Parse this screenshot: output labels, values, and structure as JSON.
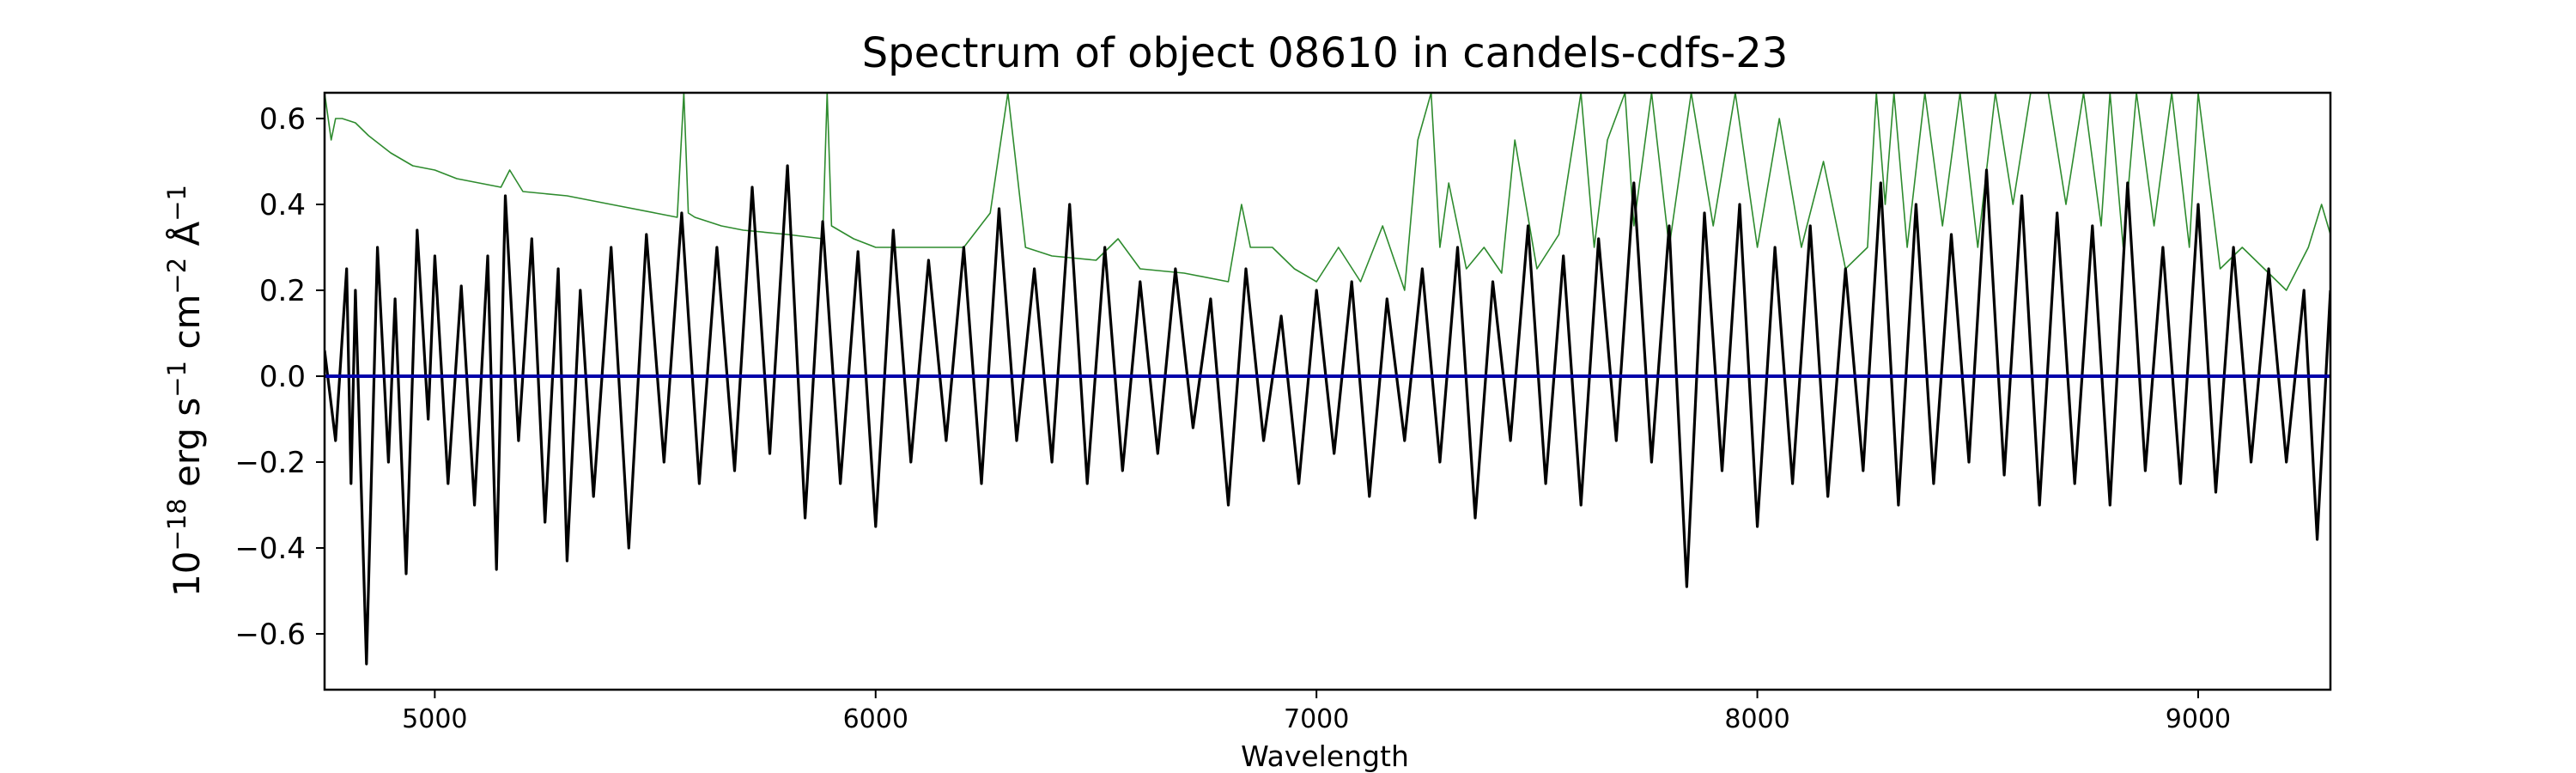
{
  "chart_data": {
    "type": "line",
    "title": "Spectrum of object 08610 in candels-cdfs-23",
    "xlabel": "Wavelength",
    "ylabel": {
      "base": "10",
      "exp1": "−18",
      "erg": " erg s",
      "exp2": "−1",
      "cm": " cm",
      "exp3": "−2",
      "ang": " Å",
      "exp4": "−1"
    },
    "xlim": [
      4750,
      9300
    ],
    "ylim": [
      -0.73,
      0.66
    ],
    "xticks": [
      5000,
      6000,
      7000,
      8000,
      9000
    ],
    "xtick_labels": [
      "5000",
      "6000",
      "7000",
      "8000",
      "9000"
    ],
    "yticks": [
      -0.6,
      -0.4,
      -0.2,
      0.0,
      0.2,
      0.4,
      0.6
    ],
    "ytick_labels": [
      "−0.6",
      "−0.4",
      "−0.2",
      "0.0",
      "0.2",
      "0.4",
      "0.6"
    ],
    "grid": false,
    "series": [
      {
        "role": "flux",
        "color": "#000000",
        "x": [
          4750,
          4775,
          4800,
          4810,
          4820,
          4845,
          4870,
          4895,
          4910,
          4935,
          4960,
          4985,
          5000,
          5030,
          5060,
          5090,
          5120,
          5140,
          5160,
          5190,
          5220,
          5250,
          5280,
          5300,
          5330,
          5360,
          5400,
          5440,
          5480,
          5520,
          5560,
          5600,
          5640,
          5680,
          5720,
          5760,
          5800,
          5840,
          5880,
          5920,
          5960,
          6000,
          6040,
          6080,
          6120,
          6160,
          6200,
          6240,
          6280,
          6320,
          6360,
          6400,
          6440,
          6480,
          6520,
          6560,
          6600,
          6640,
          6680,
          6720,
          6760,
          6800,
          6840,
          6880,
          6920,
          6960,
          7000,
          7040,
          7080,
          7120,
          7160,
          7200,
          7240,
          7280,
          7320,
          7360,
          7400,
          7440,
          7480,
          7520,
          7560,
          7600,
          7640,
          7680,
          7720,
          7760,
          7800,
          7840,
          7880,
          7920,
          7960,
          8000,
          8040,
          8080,
          8120,
          8160,
          8200,
          8240,
          8280,
          8320,
          8360,
          8400,
          8440,
          8480,
          8520,
          8560,
          8600,
          8640,
          8680,
          8720,
          8760,
          8800,
          8840,
          8880,
          8920,
          8960,
          9000,
          9040,
          9080,
          9120,
          9160,
          9200,
          9240,
          9270,
          9300
        ],
        "y": [
          0.06,
          -0.15,
          0.25,
          -0.25,
          0.2,
          -0.67,
          0.3,
          -0.2,
          0.18,
          -0.46,
          0.34,
          -0.1,
          0.28,
          -0.25,
          0.21,
          -0.3,
          0.28,
          -0.45,
          0.42,
          -0.15,
          0.32,
          -0.34,
          0.25,
          -0.43,
          0.2,
          -0.28,
          0.3,
          -0.4,
          0.33,
          -0.2,
          0.38,
          -0.25,
          0.3,
          -0.22,
          0.44,
          -0.18,
          0.49,
          -0.33,
          0.36,
          -0.25,
          0.29,
          -0.35,
          0.34,
          -0.2,
          0.27,
          -0.15,
          0.3,
          -0.25,
          0.39,
          -0.15,
          0.25,
          -0.2,
          0.4,
          -0.25,
          0.3,
          -0.22,
          0.22,
          -0.18,
          0.25,
          -0.12,
          0.18,
          -0.3,
          0.25,
          -0.15,
          0.14,
          -0.25,
          0.2,
          -0.18,
          0.22,
          -0.28,
          0.18,
          -0.15,
          0.25,
          -0.2,
          0.3,
          -0.33,
          0.22,
          -0.15,
          0.35,
          -0.25,
          0.28,
          -0.3,
          0.32,
          -0.15,
          0.45,
          -0.2,
          0.35,
          -0.49,
          0.38,
          -0.22,
          0.4,
          -0.35,
          0.3,
          -0.25,
          0.35,
          -0.28,
          0.25,
          -0.22,
          0.45,
          -0.3,
          0.4,
          -0.25,
          0.33,
          -0.2,
          0.48,
          -0.23,
          0.42,
          -0.3,
          0.38,
          -0.25,
          0.35,
          -0.3,
          0.45,
          -0.22,
          0.3,
          -0.25,
          0.4,
          -0.27,
          0.3,
          -0.2,
          0.25,
          -0.2,
          0.2,
          -0.38,
          0.2
        ]
      },
      {
        "role": "error",
        "color": "#2e8b2e",
        "x": [
          4750,
          4765,
          4775,
          4790,
          4820,
          4850,
          4900,
          4950,
          5000,
          5050,
          5100,
          5150,
          5170,
          5200,
          5300,
          5400,
          5500,
          5550,
          5565,
          5575,
          5590,
          5650,
          5700,
          5800,
          5880,
          5890,
          5900,
          5950,
          6000,
          6100,
          6200,
          6260,
          6300,
          6340,
          6400,
          6500,
          6550,
          6600,
          6700,
          6800,
          6830,
          6850,
          6900,
          6950,
          7000,
          7050,
          7100,
          7150,
          7200,
          7230,
          7260,
          7280,
          7300,
          7340,
          7380,
          7420,
          7450,
          7500,
          7550,
          7600,
          7630,
          7660,
          7700,
          7720,
          7760,
          7800,
          7850,
          7900,
          7950,
          8000,
          8050,
          8100,
          8150,
          8200,
          8250,
          8270,
          8290,
          8310,
          8340,
          8380,
          8420,
          8460,
          8500,
          8540,
          8580,
          8620,
          8660,
          8700,
          8740,
          8780,
          8800,
          8830,
          8860,
          8900,
          8940,
          8980,
          9000,
          9050,
          9100,
          9150,
          9200,
          9250,
          9280,
          9300
        ],
        "y": [
          0.66,
          0.55,
          0.6,
          0.6,
          0.59,
          0.56,
          0.52,
          0.49,
          0.48,
          0.46,
          0.45,
          0.44,
          0.48,
          0.43,
          0.42,
          0.4,
          0.38,
          0.37,
          0.66,
          0.38,
          0.37,
          0.35,
          0.34,
          0.33,
          0.32,
          0.66,
          0.35,
          0.32,
          0.3,
          0.3,
          0.3,
          0.38,
          0.66,
          0.3,
          0.28,
          0.27,
          0.32,
          0.25,
          0.24,
          0.22,
          0.4,
          0.3,
          0.3,
          0.25,
          0.22,
          0.3,
          0.22,
          0.35,
          0.2,
          0.55,
          0.66,
          0.3,
          0.45,
          0.25,
          0.3,
          0.24,
          0.55,
          0.25,
          0.33,
          0.66,
          0.3,
          0.55,
          0.66,
          0.35,
          0.66,
          0.3,
          0.66,
          0.35,
          0.66,
          0.3,
          0.6,
          0.3,
          0.5,
          0.25,
          0.3,
          0.66,
          0.4,
          0.66,
          0.3,
          0.66,
          0.35,
          0.66,
          0.3,
          0.66,
          0.4,
          0.66,
          0.66,
          0.4,
          0.66,
          0.35,
          0.66,
          0.3,
          0.66,
          0.35,
          0.66,
          0.3,
          0.66,
          0.25,
          0.3,
          0.25,
          0.2,
          0.3,
          0.4,
          0.33
        ]
      },
      {
        "role": "model",
        "color": "#0000aa",
        "x": [
          4750,
          9300
        ],
        "y": [
          0.0,
          0.0
        ]
      }
    ]
  }
}
